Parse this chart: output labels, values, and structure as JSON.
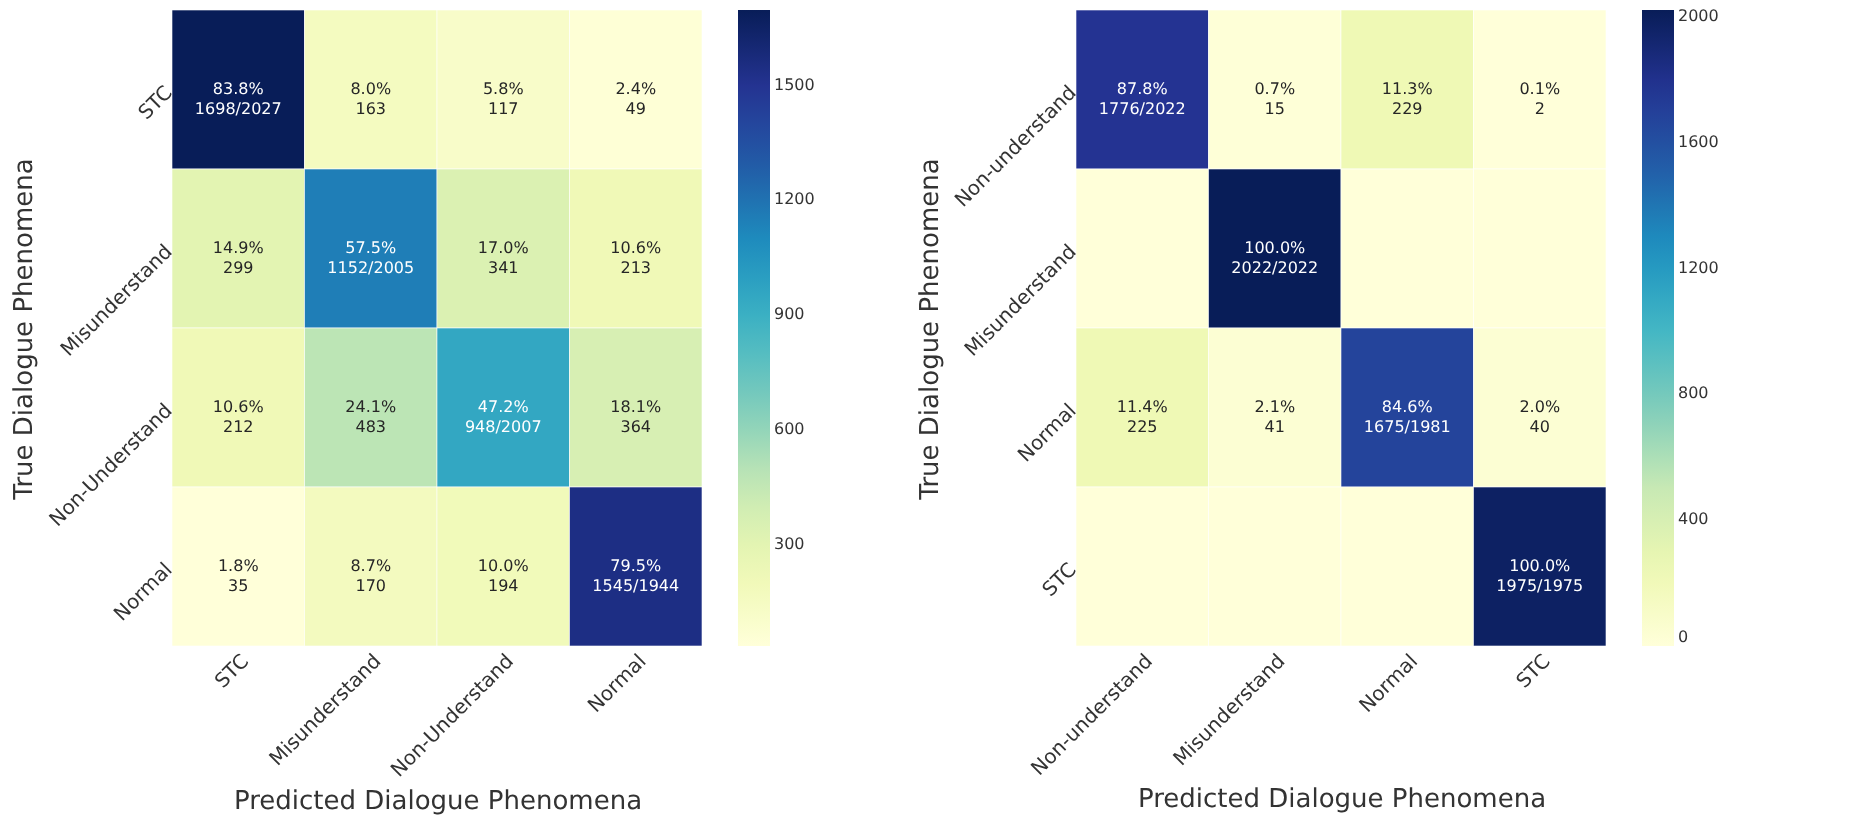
{
  "chart_data": [
    {
      "type": "heatmap",
      "xlabel": "Predicted Dialogue Phenomena",
      "ylabel": "True Dialogue Phenomena",
      "categories": [
        "STC",
        "Misunderstand",
        "Non-Understand",
        "Normal"
      ],
      "y_categories": [
        "STC",
        "Misunderstand",
        "Non-Understand",
        "Normal"
      ],
      "cells": [
        [
          1698,
          163,
          117,
          49
        ],
        [
          299,
          1152,
          341,
          213
        ],
        [
          212,
          483,
          948,
          364
        ],
        [
          35,
          170,
          194,
          1545
        ]
      ],
      "cell_labels": [
        [
          "83.8%\n1698/2027",
          "8.0%\n163",
          "5.8%\n117",
          "2.4%\n49"
        ],
        [
          "14.9%\n299",
          "57.5%\n1152/2005",
          "17.0%\n341",
          "10.6%\n213"
        ],
        [
          "10.6%\n212",
          "24.1%\n483",
          "47.2%\n948/2007",
          "18.1%\n364"
        ],
        [
          "1.8%\n35",
          "8.7%\n170",
          "10.0%\n194",
          "79.5%\n1545/1944"
        ]
      ],
      "clim": [
        35,
        1698
      ],
      "cticks": [
        300,
        600,
        900,
        1200,
        1500
      ]
    },
    {
      "type": "heatmap",
      "xlabel": "Predicted Dialogue Phenomena",
      "ylabel": "True Dialogue Phenomena",
      "categories": [
        "Non-understand",
        "Misunderstand",
        "Normal",
        "STC"
      ],
      "y_categories": [
        "Non-understand",
        "Misunderstand",
        "Normal",
        "STC"
      ],
      "cells": [
        [
          1776,
          15,
          229,
          2
        ],
        [
          0,
          2022,
          0,
          0
        ],
        [
          225,
          41,
          1675,
          40
        ],
        [
          0,
          0,
          0,
          1975
        ]
      ],
      "cell_labels": [
        [
          "87.8%\n1776/2022",
          "0.7%\n15",
          "11.3%\n229",
          "0.1%\n2"
        ],
        [
          null,
          "100.0%\n2022/2022",
          null,
          null
        ],
        [
          "11.4%\n225",
          "2.1%\n41",
          "84.6%\n1675/1981",
          "2.0%\n40"
        ],
        [
          null,
          null,
          null,
          "100.0%\n1975/1975"
        ]
      ],
      "clim": [
        0,
        2022
      ],
      "cticks": [
        0,
        400,
        800,
        1200,
        1600,
        2000
      ]
    }
  ]
}
